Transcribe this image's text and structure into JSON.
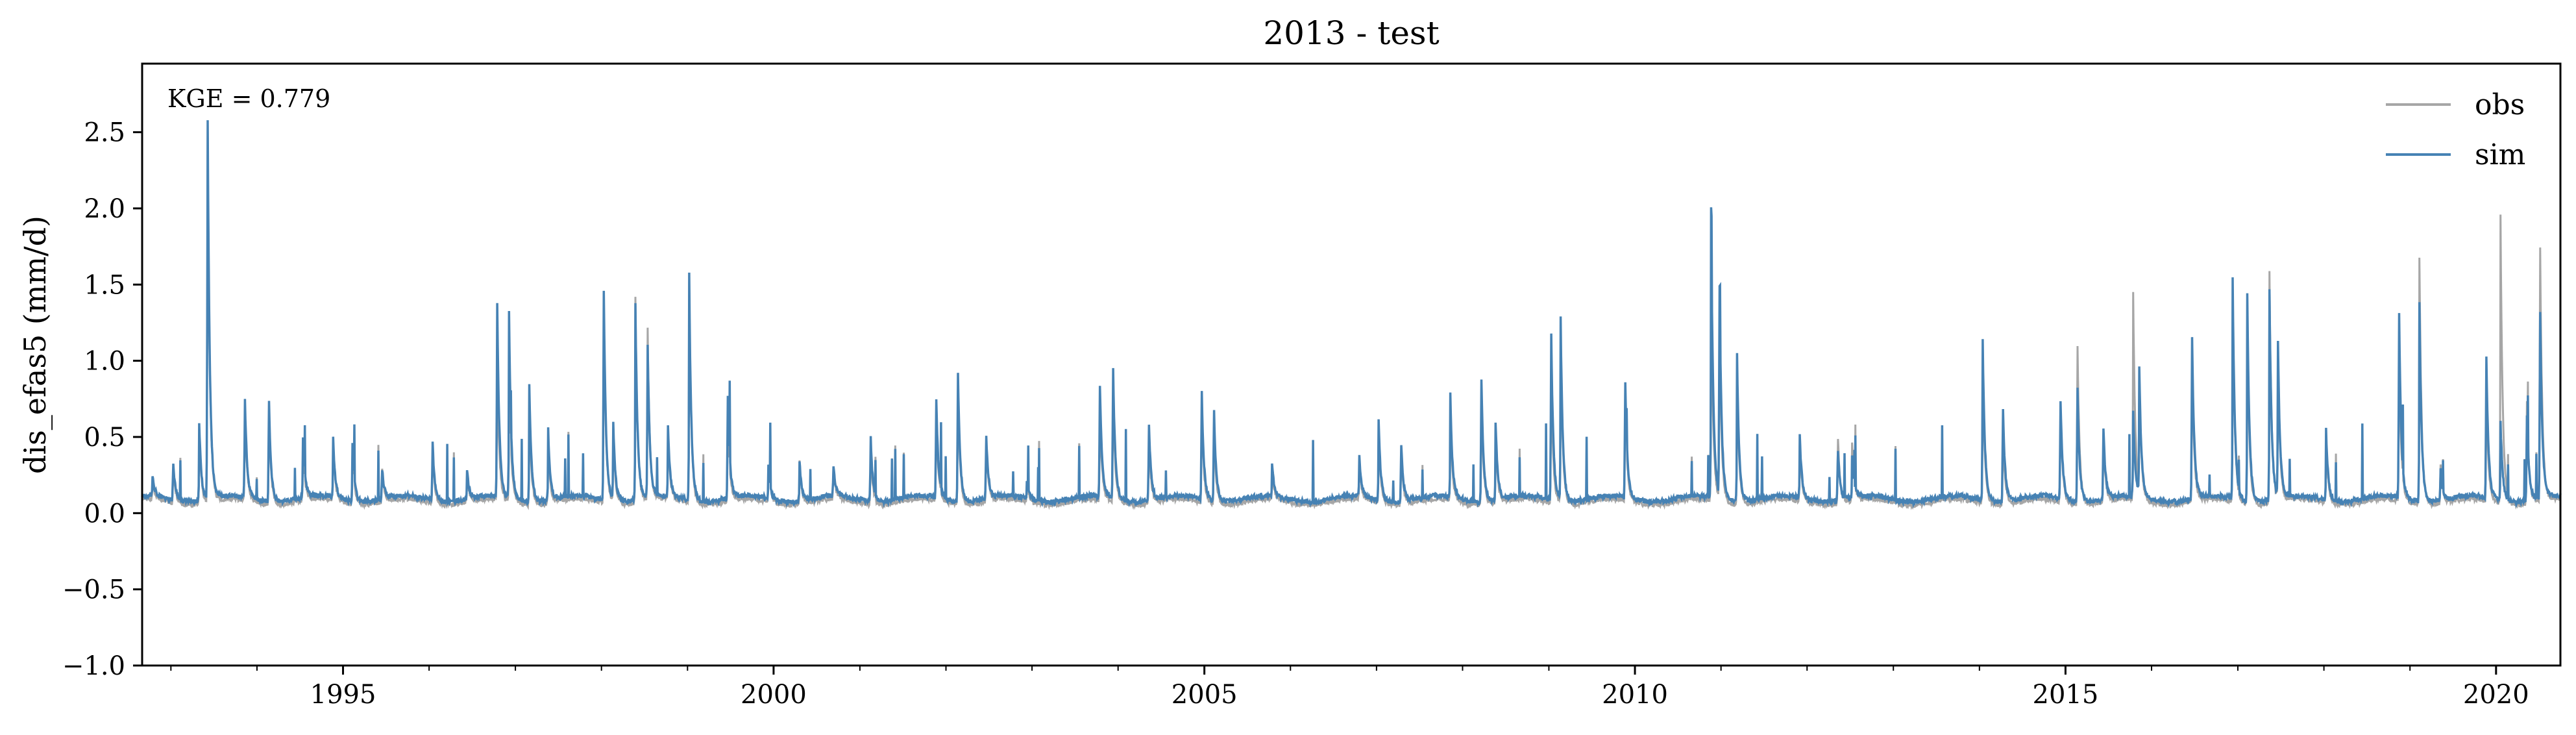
{
  "chart_data": {
    "type": "line",
    "title": "2013 - test",
    "xlabel": "",
    "ylabel": "dis_efas5 (mm/d)",
    "xlim": [
      "1992-09-01",
      "2020-09-30"
    ],
    "ylim": [
      -1.0,
      2.95
    ],
    "x_ticks": [
      "1995",
      "2000",
      "2005",
      "2010",
      "2015",
      "2020"
    ],
    "y_ticks": [
      "−1.0",
      "−0.5",
      "0.0",
      "0.5",
      "1.0",
      "1.5",
      "2.0",
      "2.5"
    ],
    "y_tick_values": [
      -1.0,
      -0.5,
      0.0,
      0.5,
      1.0,
      1.5,
      2.0,
      2.5
    ],
    "annotation": "KGE = 0.779",
    "legend": {
      "position": "top-right",
      "entries": [
        "obs",
        "sim"
      ]
    },
    "grid": false,
    "colors": {
      "obs": "#a6a6a6",
      "sim": "#4682b4"
    },
    "baseline": {
      "obs": 0.06,
      "sim": 0.08
    },
    "peaks": [
      [
        "1992-10-15",
        0.2,
        0.22
      ],
      [
        "1993-01-10",
        0.33,
        0.36
      ],
      [
        "1993-05-01",
        0.55,
        0.6
      ],
      [
        "1993-06-05",
        2.8,
        2.84
      ],
      [
        "1993-11-10",
        0.7,
        0.8
      ],
      [
        "1994-02-20",
        0.75,
        0.83
      ],
      [
        "1994-07-15",
        0.42,
        0.48
      ],
      [
        "1994-11-20",
        0.45,
        0.48
      ],
      [
        "1995-02-10",
        0.42,
        0.45
      ],
      [
        "1995-06-15",
        0.3,
        0.3
      ],
      [
        "1996-01-15",
        0.45,
        0.5
      ],
      [
        "1996-06-10",
        0.25,
        0.28
      ],
      [
        "1996-10-15",
        1.0,
        1.48
      ],
      [
        "1996-12-05",
        0.95,
        1.3
      ],
      [
        "1997-03-01",
        0.7,
        0.85
      ],
      [
        "1997-05-20",
        0.45,
        0.55
      ],
      [
        "1998-01-10",
        1.5,
        1.6
      ],
      [
        "1998-02-20",
        0.55,
        0.6
      ],
      [
        "1998-05-25",
        1.4,
        1.38
      ],
      [
        "1998-07-15",
        1.32,
        1.2
      ],
      [
        "1998-10-10",
        0.5,
        0.55
      ],
      [
        "1999-01-08",
        1.5,
        1.56
      ],
      [
        "1999-06-20",
        0.7,
        0.83
      ],
      [
        "1999-12-10",
        0.3,
        0.3
      ],
      [
        "2000-04-20",
        0.35,
        0.35
      ],
      [
        "2000-09-10",
        0.3,
        0.3
      ],
      [
        "2001-02-15",
        0.45,
        0.55
      ],
      [
        "2001-11-20",
        0.7,
        0.8
      ],
      [
        "2002-02-20",
        0.9,
        1.03
      ],
      [
        "2002-06-20",
        0.5,
        0.55
      ],
      [
        "2002-12-10",
        0.2,
        0.2
      ],
      [
        "2003-10-15",
        0.7,
        0.9
      ],
      [
        "2003-12-10",
        0.85,
        1.03
      ],
      [
        "2004-05-10",
        0.55,
        0.65
      ],
      [
        "2004-12-20",
        0.75,
        0.86
      ],
      [
        "2005-02-10",
        0.6,
        0.75
      ],
      [
        "2005-10-15",
        0.25,
        0.3
      ],
      [
        "2006-10-20",
        0.3,
        0.36
      ],
      [
        "2007-01-10",
        0.55,
        0.6
      ],
      [
        "2007-04-15",
        0.45,
        0.5
      ],
      [
        "2007-11-10",
        0.6,
        0.75
      ],
      [
        "2008-03-20",
        0.85,
        0.99
      ],
      [
        "2008-05-20",
        0.5,
        0.6
      ],
      [
        "2009-01-10",
        0.95,
        1.29
      ],
      [
        "2009-02-20",
        1.15,
        1.27
      ],
      [
        "2009-11-20",
        0.8,
        0.93
      ],
      [
        "2010-11-20",
        1.47,
        1.97
      ],
      [
        "2010-12-25",
        1.3,
        1.6
      ],
      [
        "2011-03-10",
        0.9,
        1.05
      ],
      [
        "2011-12-01",
        0.45,
        0.5
      ],
      [
        "2012-05-10",
        0.55,
        0.45
      ],
      [
        "2012-07-10",
        0.45,
        0.35
      ],
      [
        "2014-01-15",
        0.95,
        1.14
      ],
      [
        "2014-04-10",
        0.6,
        0.75
      ],
      [
        "2014-12-10",
        0.75,
        0.8
      ],
      [
        "2015-02-20",
        1.23,
        0.9
      ],
      [
        "2015-06-10",
        0.55,
        0.6
      ],
      [
        "2015-10-15",
        1.41,
        0.65
      ],
      [
        "2015-11-10",
        0.8,
        0.9
      ],
      [
        "2016-06-20",
        1.1,
        1.26
      ],
      [
        "2016-12-10",
        1.45,
        1.52
      ],
      [
        "2017-02-10",
        1.3,
        1.43
      ],
      [
        "2017-05-15",
        1.58,
        1.47
      ],
      [
        "2017-06-20",
        1.0,
        1.1
      ],
      [
        "2018-01-10",
        0.5,
        0.55
      ],
      [
        "2018-11-15",
        1.15,
        1.43
      ],
      [
        "2019-02-10",
        1.68,
        1.4
      ],
      [
        "2019-05-10",
        0.35,
        0.3
      ],
      [
        "2019-11-20",
        0.85,
        1.1
      ],
      [
        "2020-01-20",
        1.95,
        0.6
      ],
      [
        "2020-05-10",
        0.8,
        0.7
      ],
      [
        "2020-07-05",
        1.92,
        1.45
      ]
    ]
  }
}
